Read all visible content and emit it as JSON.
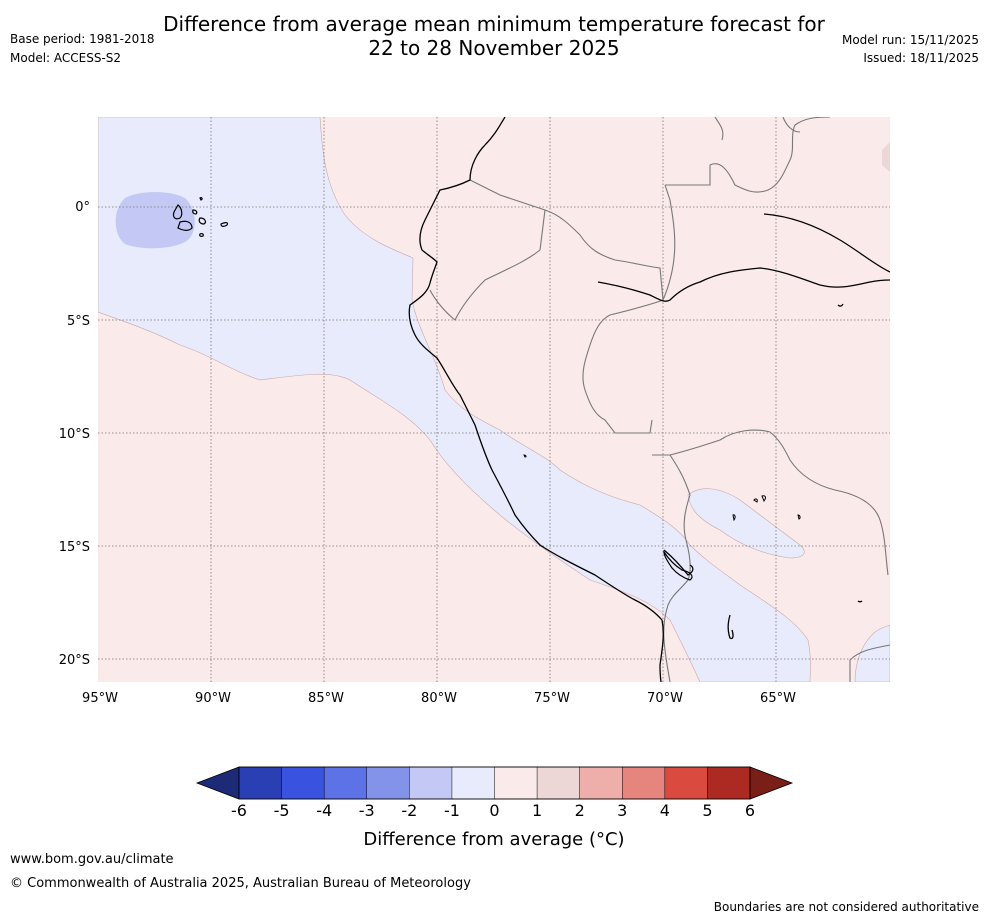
{
  "title_line1": "Difference from average mean minimum temperature forecast for",
  "title_line2": "22 to 28 November 2025",
  "base_period": "Base period: 1981-2018",
  "model": "Model: ACCESS-S2",
  "model_run": "Model run: 15/11/2025",
  "issued": "Issued: 18/11/2025",
  "lat_labels": [
    "0°",
    "5°S",
    "10°S",
    "15°S",
    "20°S"
  ],
  "lon_labels": [
    "95°W",
    "90°W",
    "85°W",
    "80°W",
    "75°W",
    "70°W",
    "65°W"
  ],
  "colorbar": {
    "title": "Difference from average (°C)",
    "ticks": [
      "-6",
      "-5",
      "-4",
      "-3",
      "-2",
      "-1",
      "0",
      "1",
      "2",
      "3",
      "4",
      "5",
      "6"
    ],
    "colors": [
      "#1d2a78",
      "#2a3fb3",
      "#3a52e0",
      "#5c72e6",
      "#8493ea",
      "#c3c9f4",
      "#e8ebfb",
      "#fbeaea",
      "#ecd6d6",
      "#eeaeaa",
      "#e6857e",
      "#db4a3e",
      "#ad2a22",
      "#7a1e18"
    ]
  },
  "footer_url": "www.bom.gov.au/climate",
  "footer_copyright": "© Commonwealth of Australia 2025, Australian Bureau of Meteorology",
  "footer_disclaimer": "Boundaries are not considered authoritative"
}
